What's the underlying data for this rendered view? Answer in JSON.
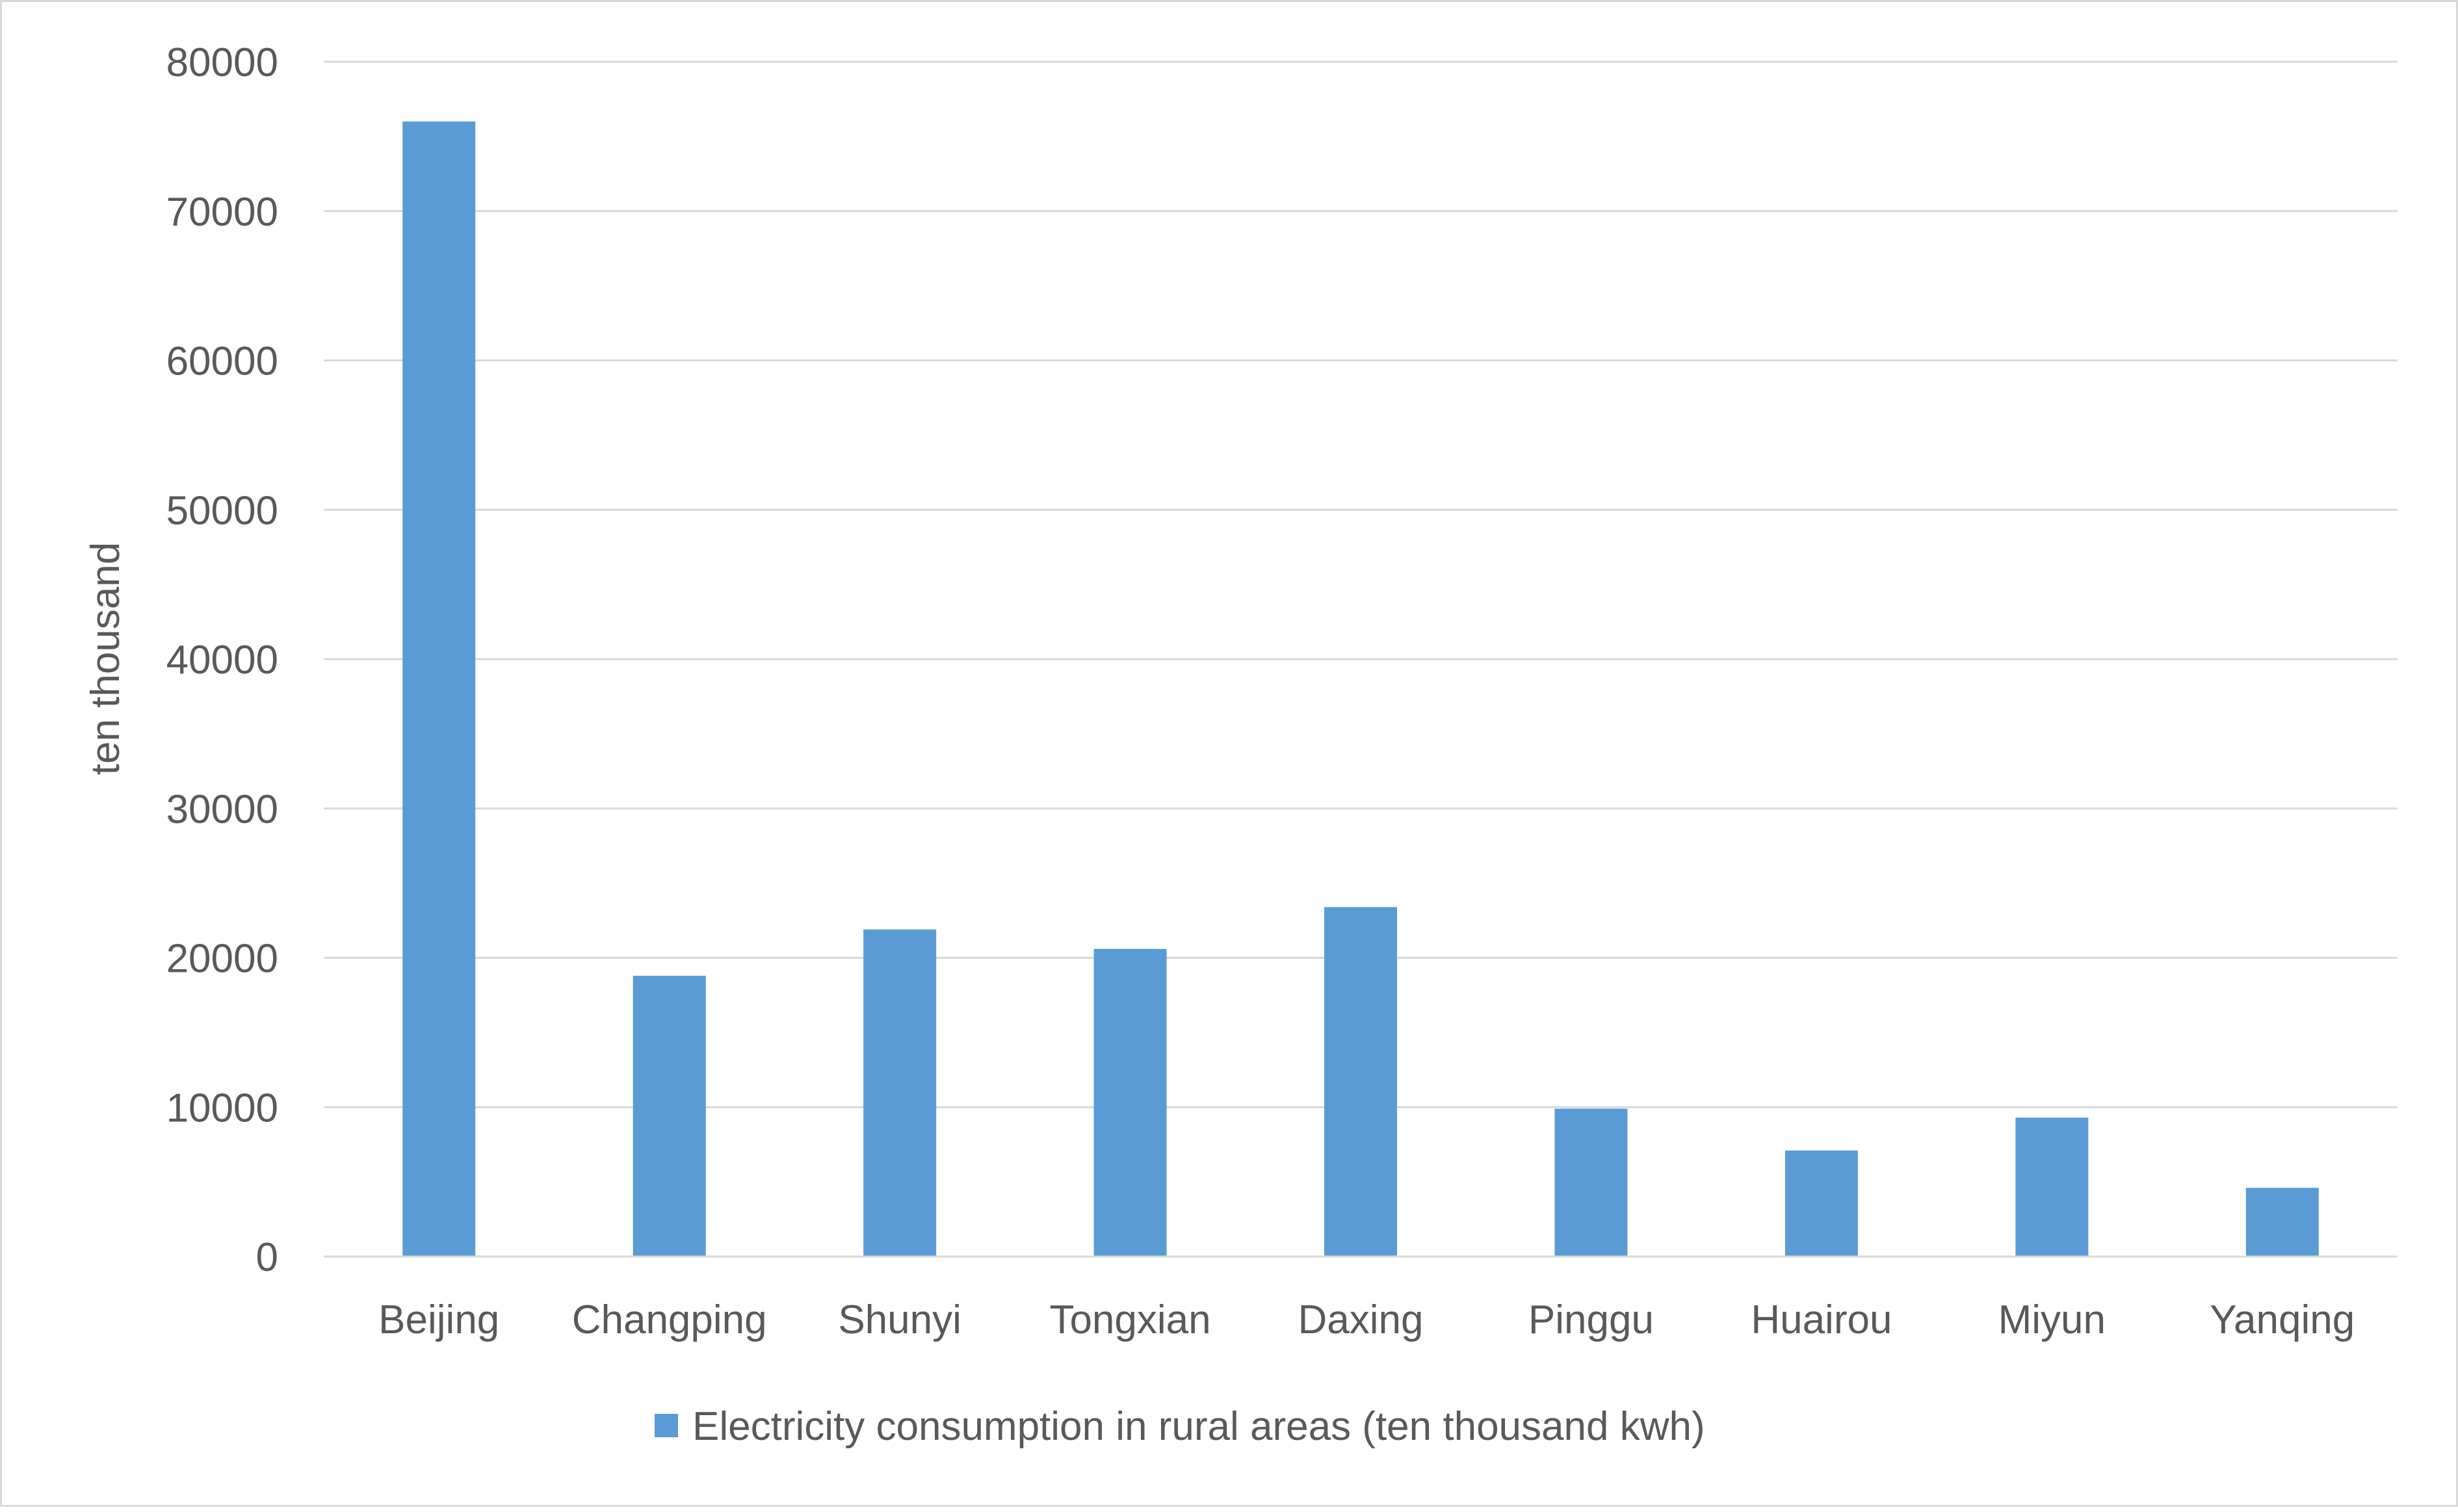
{
  "chart_data": {
    "type": "bar",
    "title": "",
    "xlabel": "",
    "ylabel": "ten thousand",
    "ylim": [
      0,
      80000
    ],
    "yticks": [
      0,
      10000,
      20000,
      30000,
      40000,
      50000,
      60000,
      70000,
      80000
    ],
    "grid": true,
    "legend_position": "bottom",
    "categories": [
      "Beijing",
      "Changping",
      "Shunyi",
      "Tongxian",
      "Daxing",
      "Pinggu",
      "Huairou",
      "Miyun",
      "Yanqing"
    ],
    "series": [
      {
        "name": "Electricity consumption in rural areas (ten thousand kwh)",
        "color": "#5b9bd5",
        "values": [
          76000,
          18800,
          21900,
          20600,
          23400,
          9900,
          7100,
          9300,
          4600
        ]
      }
    ]
  }
}
